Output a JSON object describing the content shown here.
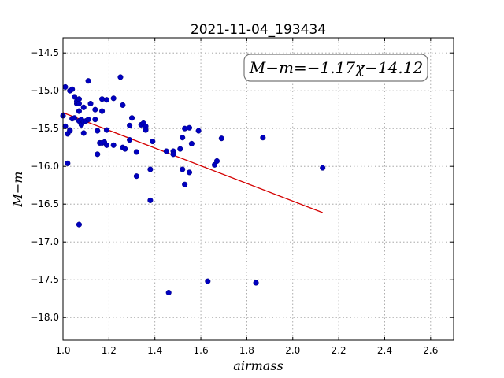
{
  "chart_data": {
    "type": "scatter",
    "title": "2021-11-04_193434",
    "xlabel": "airmass",
    "ylabel": "M−m",
    "xlim": [
      1.0,
      2.7
    ],
    "ylim": [
      -18.3,
      -14.3
    ],
    "y_inverted": false,
    "grid": true,
    "x_ticks": [
      1.0,
      1.2,
      1.4,
      1.6,
      1.8,
      2.0,
      2.2,
      2.4,
      2.6
    ],
    "x_tick_labels": [
      "1.0",
      "1.2",
      "1.4",
      "1.6",
      "1.8",
      "2.0",
      "2.2",
      "2.4",
      "2.6"
    ],
    "y_ticks": [
      -14.5,
      -15.0,
      -15.5,
      -16.0,
      -16.5,
      -17.0,
      -17.5,
      -18.0
    ],
    "y_tick_labels": [
      "−14.5",
      "−15.0",
      "−15.5",
      "−16.0",
      "−16.5",
      "−17.0",
      "−17.5",
      "−18.0"
    ],
    "annotation": "M−m=−1.17χ−14.12",
    "fit": {
      "slope": -1.17,
      "intercept": -14.12,
      "x_range": [
        1.0,
        2.13
      ],
      "color": "#d40000"
    },
    "point_color": "#0000bf",
    "points": [
      [
        1.0,
        -15.33
      ],
      [
        1.01,
        -14.95
      ],
      [
        1.01,
        -15.47
      ],
      [
        1.02,
        -15.96
      ],
      [
        1.02,
        -15.57
      ],
      [
        1.03,
        -15.52
      ],
      [
        1.03,
        -15.53
      ],
      [
        1.03,
        -15.0
      ],
      [
        1.04,
        -15.37
      ],
      [
        1.04,
        -14.98
      ],
      [
        1.05,
        -15.36
      ],
      [
        1.05,
        -15.08
      ],
      [
        1.06,
        -15.17
      ],
      [
        1.06,
        -15.14
      ],
      [
        1.07,
        -15.11
      ],
      [
        1.07,
        -15.17
      ],
      [
        1.07,
        -15.4
      ],
      [
        1.07,
        -16.77
      ],
      [
        1.07,
        -15.27
      ],
      [
        1.08,
        -15.44
      ],
      [
        1.08,
        -15.45
      ],
      [
        1.08,
        -15.38
      ],
      [
        1.09,
        -15.56
      ],
      [
        1.09,
        -15.41
      ],
      [
        1.09,
        -15.22
      ],
      [
        1.1,
        -15.4
      ],
      [
        1.11,
        -15.38
      ],
      [
        1.11,
        -14.87
      ],
      [
        1.12,
        -15.17
      ],
      [
        1.14,
        -15.25
      ],
      [
        1.14,
        -15.38
      ],
      [
        1.15,
        -15.53
      ],
      [
        1.15,
        -15.84
      ],
      [
        1.16,
        -15.69
      ],
      [
        1.17,
        -15.27
      ],
      [
        1.17,
        -15.69
      ],
      [
        1.17,
        -15.11
      ],
      [
        1.18,
        -15.68
      ],
      [
        1.19,
        -15.52
      ],
      [
        1.19,
        -15.12
      ],
      [
        1.19,
        -15.72
      ],
      [
        1.22,
        -15.72
      ],
      [
        1.22,
        -15.1
      ],
      [
        1.25,
        -14.82
      ],
      [
        1.26,
        -15.75
      ],
      [
        1.26,
        -15.19
      ],
      [
        1.27,
        -15.77
      ],
      [
        1.29,
        -15.46
      ],
      [
        1.29,
        -15.65
      ],
      [
        1.3,
        -15.36
      ],
      [
        1.32,
        -15.81
      ],
      [
        1.32,
        -16.13
      ],
      [
        1.34,
        -15.45
      ],
      [
        1.35,
        -15.43
      ],
      [
        1.36,
        -15.47
      ],
      [
        1.36,
        -15.52
      ],
      [
        1.38,
        -16.04
      ],
      [
        1.38,
        -16.45
      ],
      [
        1.39,
        -15.67
      ],
      [
        1.45,
        -15.8
      ],
      [
        1.46,
        -17.67
      ],
      [
        1.48,
        -15.8
      ],
      [
        1.48,
        -15.84
      ],
      [
        1.51,
        -15.77
      ],
      [
        1.52,
        -15.62
      ],
      [
        1.52,
        -16.04
      ],
      [
        1.53,
        -15.5
      ],
      [
        1.53,
        -16.24
      ],
      [
        1.55,
        -15.49
      ],
      [
        1.55,
        -16.08
      ],
      [
        1.56,
        -15.7
      ],
      [
        1.59,
        -15.53
      ],
      [
        1.63,
        -17.52
      ],
      [
        1.66,
        -15.98
      ],
      [
        1.67,
        -15.93
      ],
      [
        1.69,
        -15.63
      ],
      [
        1.84,
        -17.54
      ],
      [
        1.87,
        -15.62
      ],
      [
        2.13,
        -16.02
      ]
    ]
  }
}
